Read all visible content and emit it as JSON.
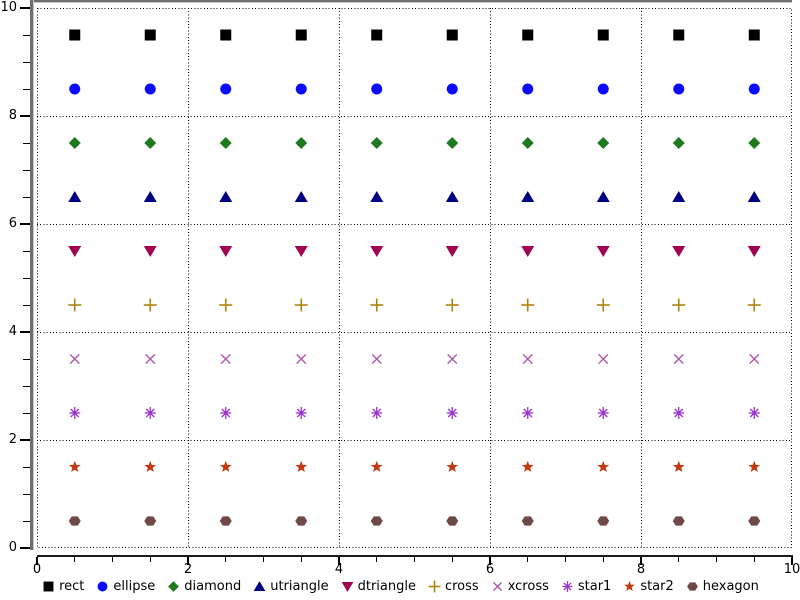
{
  "chart_data": {
    "type": "scatter",
    "title": "",
    "xlabel": "",
    "ylabel": "",
    "xlim": [
      0,
      10
    ],
    "ylim": [
      0,
      10
    ],
    "x_tick_labels": [
      "0",
      "2",
      "4",
      "6",
      "8",
      "10"
    ],
    "y_tick_labels": [
      "0",
      "2",
      "4",
      "6",
      "8",
      "10"
    ],
    "major_tick_step": 2,
    "minor_tick_step": 0.5,
    "grid": "dotted lines at major ticks plus dotted plot border",
    "legend_position": "bottom-center",
    "x": [
      0.5,
      1.5,
      2.5,
      3.5,
      4.5,
      5.5,
      6.5,
      7.5,
      8.5,
      9.5
    ],
    "series": [
      {
        "name": "rect",
        "shape": "rect",
        "color": "#000000",
        "y": 9.5
      },
      {
        "name": "ellipse",
        "shape": "ellipse",
        "color": "#0a0aff",
        "y": 8.5
      },
      {
        "name": "diamond",
        "shape": "diamond",
        "color": "#1f7a1f",
        "y": 7.5
      },
      {
        "name": "utriangle",
        "shape": "utriangle",
        "color": "#000082",
        "y": 6.5
      },
      {
        "name": "dtriangle",
        "shape": "dtriangle",
        "color": "#a10450",
        "y": 5.5
      },
      {
        "name": "cross",
        "shape": "cross",
        "color": "#b0820e",
        "y": 4.5
      },
      {
        "name": "xcross",
        "shape": "xcross",
        "color": "#b158ae",
        "y": 3.5
      },
      {
        "name": "star1",
        "shape": "star1",
        "color": "#9a32cd",
        "y": 2.5
      },
      {
        "name": "star2",
        "shape": "star2",
        "color": "#c43a12",
        "y": 1.5
      },
      {
        "name": "hexagon",
        "shape": "hexagon",
        "color": "#6f4848",
        "y": 0.5
      }
    ],
    "frame_colors": {
      "relief_gray": "#6f6f6f",
      "relief_highlight": "#c8c8c8",
      "axis_black": "#1a1a1a",
      "grid_dots": "#000000",
      "background": "#ffffff"
    }
  }
}
